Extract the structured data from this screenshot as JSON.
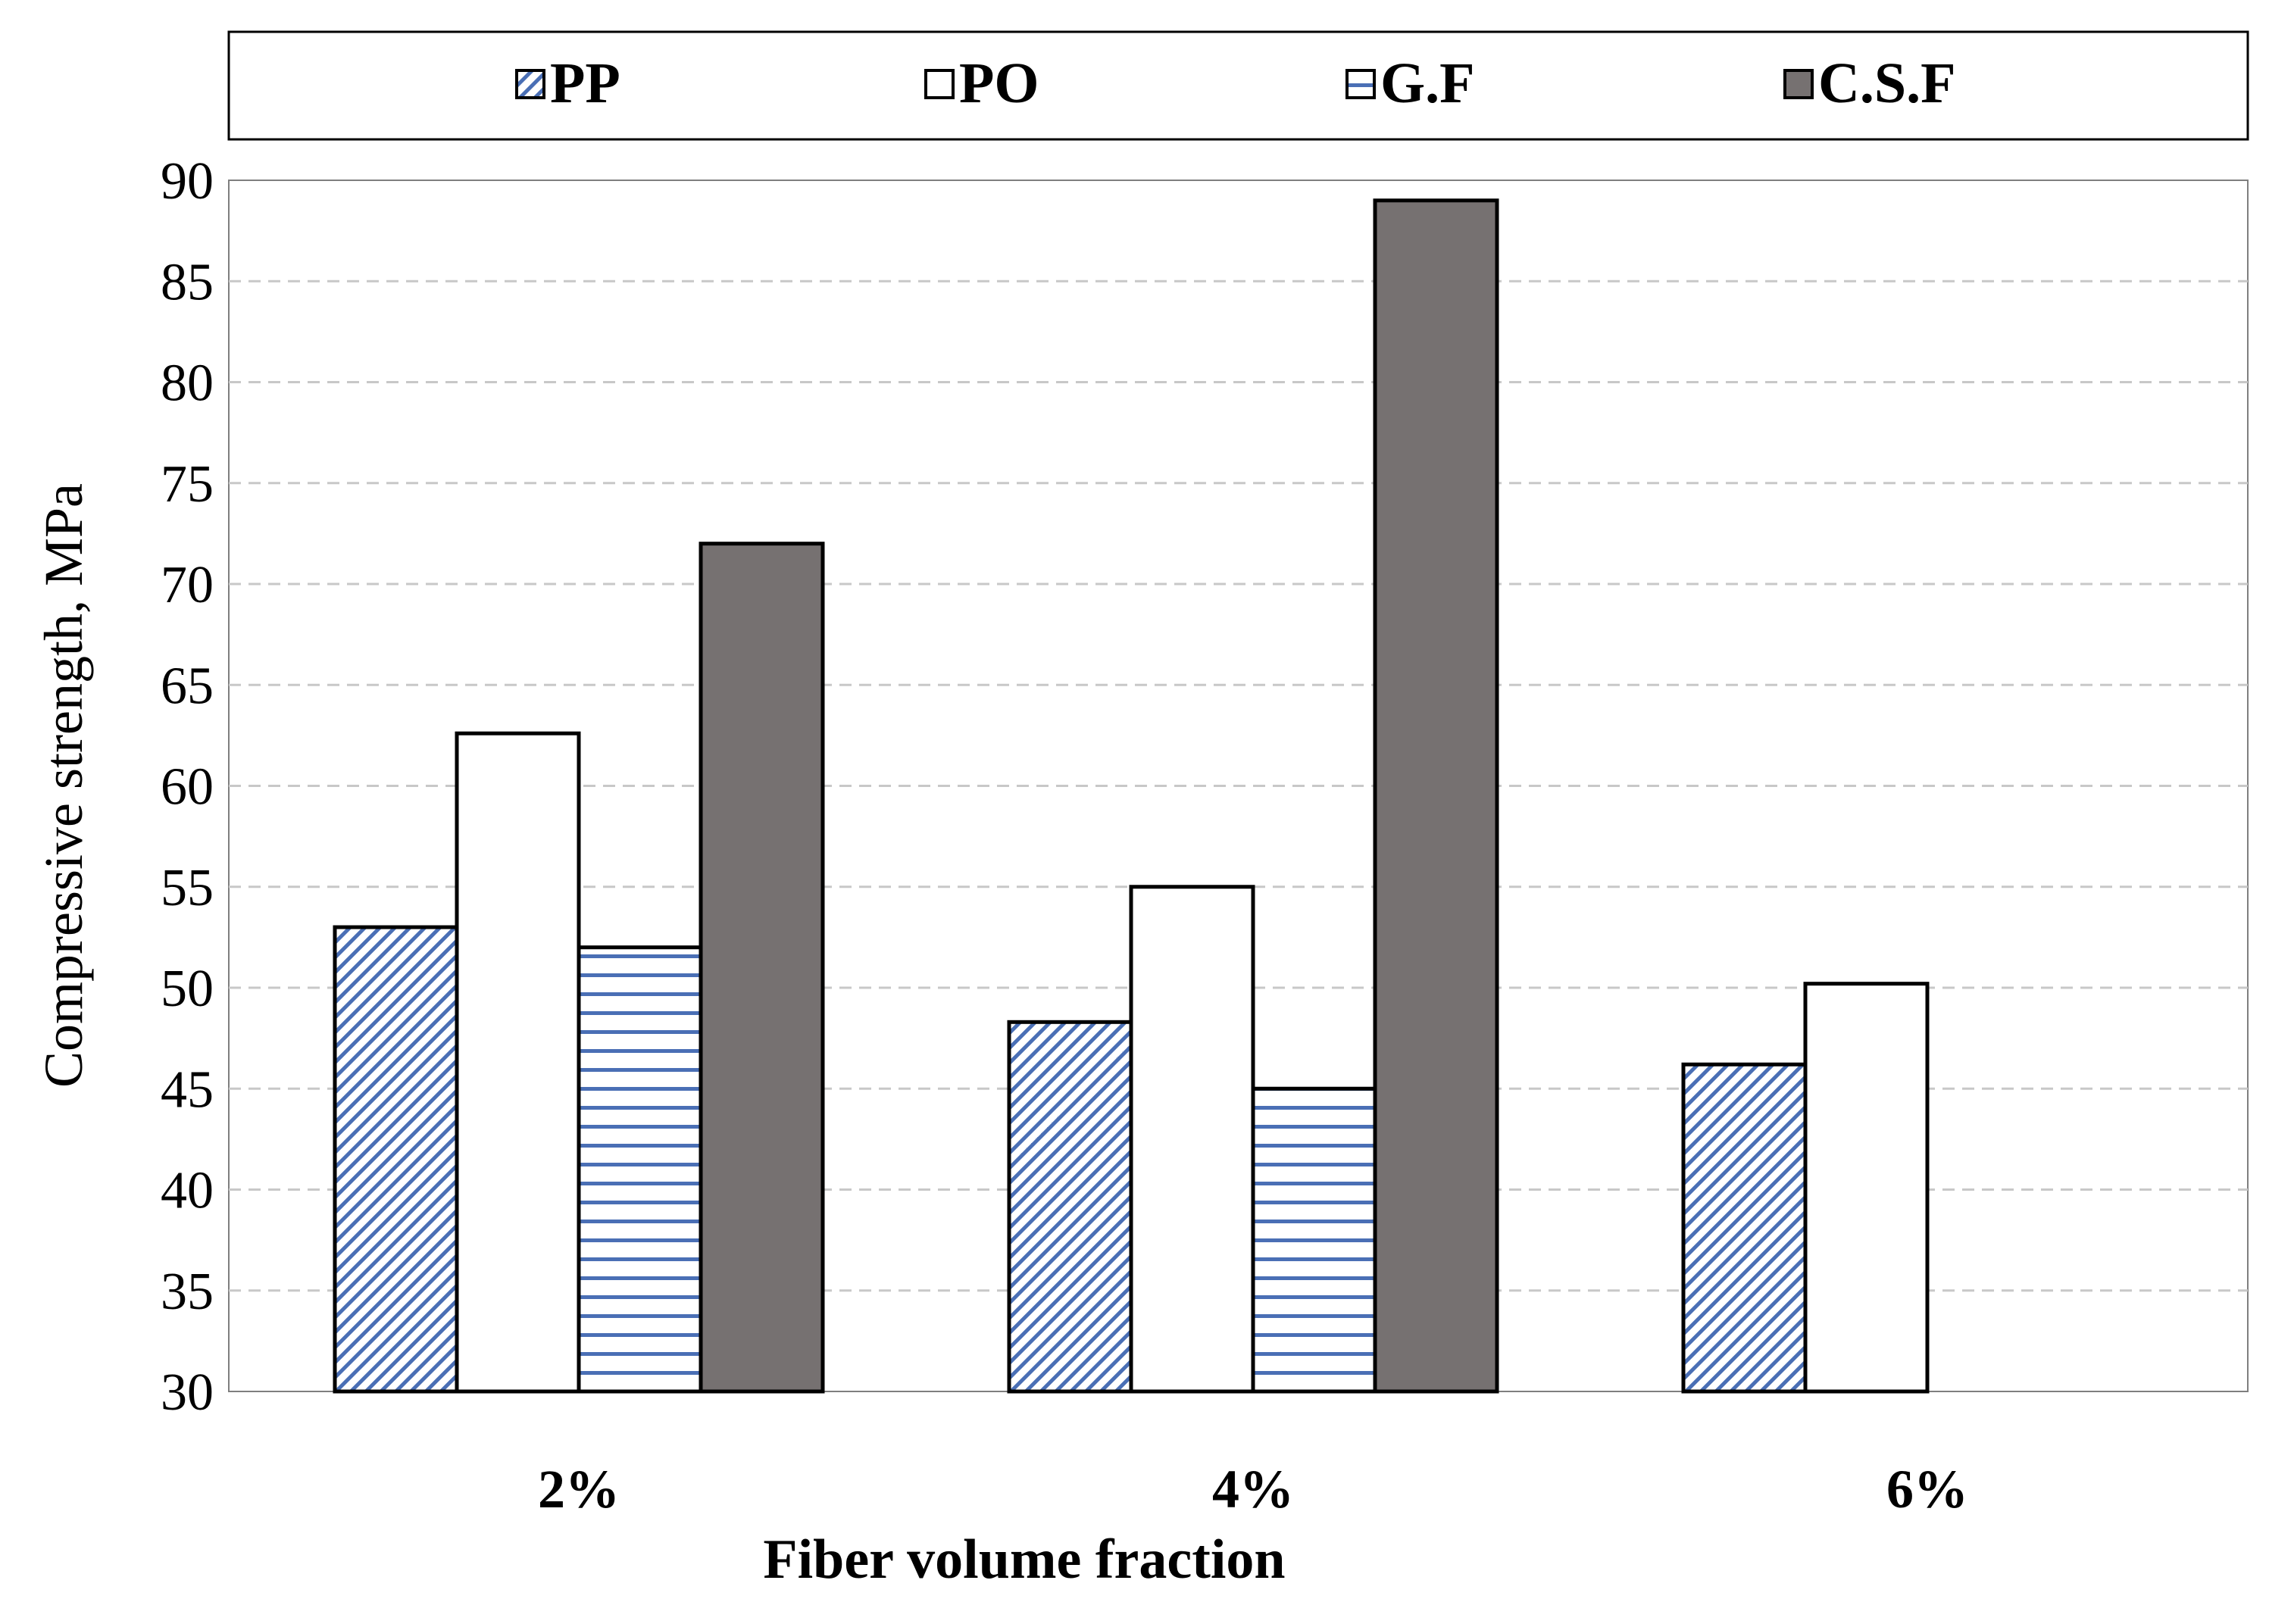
{
  "chart_data": {
    "type": "bar",
    "categories": [
      "2%",
      "4%",
      "6%"
    ],
    "series": [
      {
        "name": "PP",
        "values": [
          53,
          48.3,
          46.2
        ],
        "fill": "pattern-diagonal",
        "color": "#4a6fb5"
      },
      {
        "name": "PO",
        "values": [
          62.6,
          55,
          50.2
        ],
        "fill": "solid",
        "color": "#ffffff"
      },
      {
        "name": "G.F",
        "values": [
          52,
          45,
          null
        ],
        "fill": "pattern-horizontal",
        "color": "#4a6fb5"
      },
      {
        "name": "C.S.F",
        "values": [
          72,
          89,
          null
        ],
        "fill": "solid",
        "color": "#767171"
      }
    ],
    "xlabel": "Fiber volume fraction",
    "ylabel": "Compressive strength, MPa",
    "ylim": [
      30,
      90
    ],
    "yticks": [
      "30",
      "35",
      "40",
      "45",
      "50",
      "55",
      "60",
      "65",
      "70",
      "75",
      "80",
      "85",
      "90"
    ],
    "grid": "horizontal-dashed",
    "legend_position": "top"
  }
}
